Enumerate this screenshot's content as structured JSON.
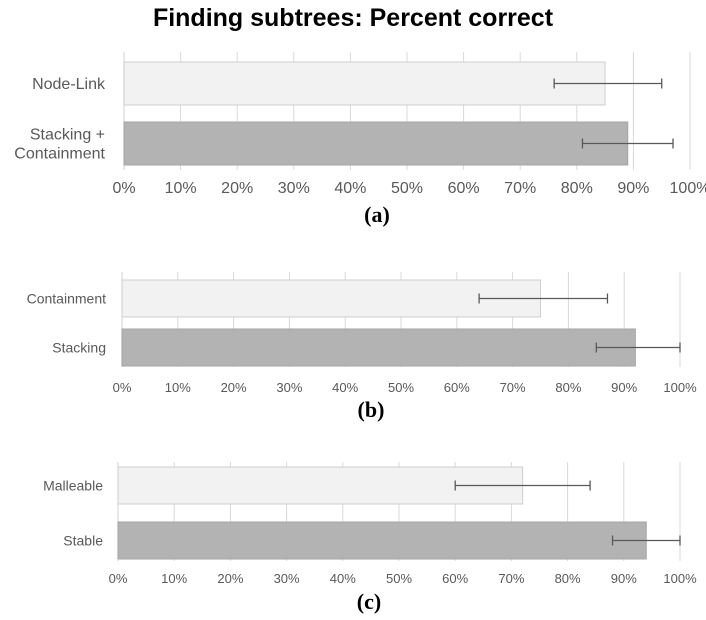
{
  "title": "Finding subtrees: Percent correct",
  "colors": {
    "light_bar": "#f2f2f2",
    "light_bar_border": "#cfcfcf",
    "dark_bar": "#b3b3b3",
    "dark_bar_border": "#a6a6a6",
    "grid": "#d9d9d9",
    "error_bar": "#595959",
    "tick_text": "#595959"
  },
  "chart_data": [
    {
      "type": "bar",
      "orientation": "horizontal",
      "caption": "(a)",
      "categories": [
        "Node-Link",
        "Stacking + Containment"
      ],
      "category_lines": [
        [
          "Node-Link"
        ],
        [
          "Stacking +",
          "Containment"
        ]
      ],
      "values": [
        85,
        89
      ],
      "error_low": [
        76,
        81
      ],
      "error_high": [
        95,
        97
      ],
      "xlim": [
        0,
        100
      ],
      "xticks": [
        "0%",
        "10%",
        "20%",
        "30%",
        "40%",
        "50%",
        "60%",
        "70%",
        "80%",
        "90%",
        "100%"
      ],
      "grid": true
    },
    {
      "type": "bar",
      "orientation": "horizontal",
      "caption": "(b)",
      "categories": [
        "Containment",
        "Stacking"
      ],
      "category_lines": [
        [
          "Containment"
        ],
        [
          "Stacking"
        ]
      ],
      "values": [
        75,
        92
      ],
      "error_low": [
        64,
        85
      ],
      "error_high": [
        87,
        100
      ],
      "xlim": [
        0,
        100
      ],
      "xticks": [
        "0%",
        "10%",
        "20%",
        "30%",
        "40%",
        "50%",
        "60%",
        "70%",
        "80%",
        "90%",
        "100%"
      ],
      "grid": true
    },
    {
      "type": "bar",
      "orientation": "horizontal",
      "caption": "(c)",
      "categories": [
        "Malleable",
        "Stable"
      ],
      "category_lines": [
        [
          "Malleable"
        ],
        [
          "Stable"
        ]
      ],
      "values": [
        72,
        94
      ],
      "error_low": [
        60,
        88
      ],
      "error_high": [
        84,
        100
      ],
      "xlim": [
        0,
        100
      ],
      "xticks": [
        "0%",
        "10%",
        "20%",
        "30%",
        "40%",
        "50%",
        "60%",
        "70%",
        "80%",
        "90%",
        "100%"
      ],
      "grid": true
    }
  ]
}
